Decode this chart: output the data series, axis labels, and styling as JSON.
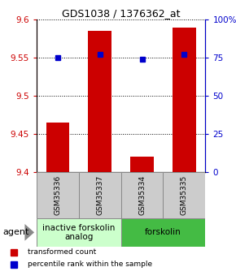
{
  "title": "GDS1038 / 1376362_at",
  "samples": [
    "GSM35336",
    "GSM35337",
    "GSM35334",
    "GSM35335"
  ],
  "bar_values": [
    9.465,
    9.585,
    9.42,
    9.59
  ],
  "percentile_values": [
    75,
    77,
    74,
    77
  ],
  "ylim_left": [
    9.4,
    9.6
  ],
  "ylim_right": [
    0,
    100
  ],
  "yticks_left": [
    9.4,
    9.45,
    9.5,
    9.55,
    9.6
  ],
  "yticks_right": [
    0,
    25,
    50,
    75,
    100
  ],
  "bar_color": "#cc0000",
  "dot_color": "#0000cc",
  "bar_width": 0.55,
  "groups": [
    {
      "label": "inactive forskolin\nanalog",
      "span": [
        0,
        1
      ],
      "color": "#ccffcc",
      "border": "#888888"
    },
    {
      "label": "forskolin",
      "span": [
        2,
        3
      ],
      "color": "#44bb44",
      "border": "#888888"
    }
  ],
  "agent_label": "agent",
  "legend_bar_label": "transformed count",
  "legend_dot_label": "percentile rank within the sample",
  "sample_box_color": "#cccccc",
  "sample_box_border": "#888888",
  "title_fontsize": 9,
  "tick_fontsize": 7.5,
  "sample_fontsize": 6.5,
  "group_fontsize": 7.5
}
